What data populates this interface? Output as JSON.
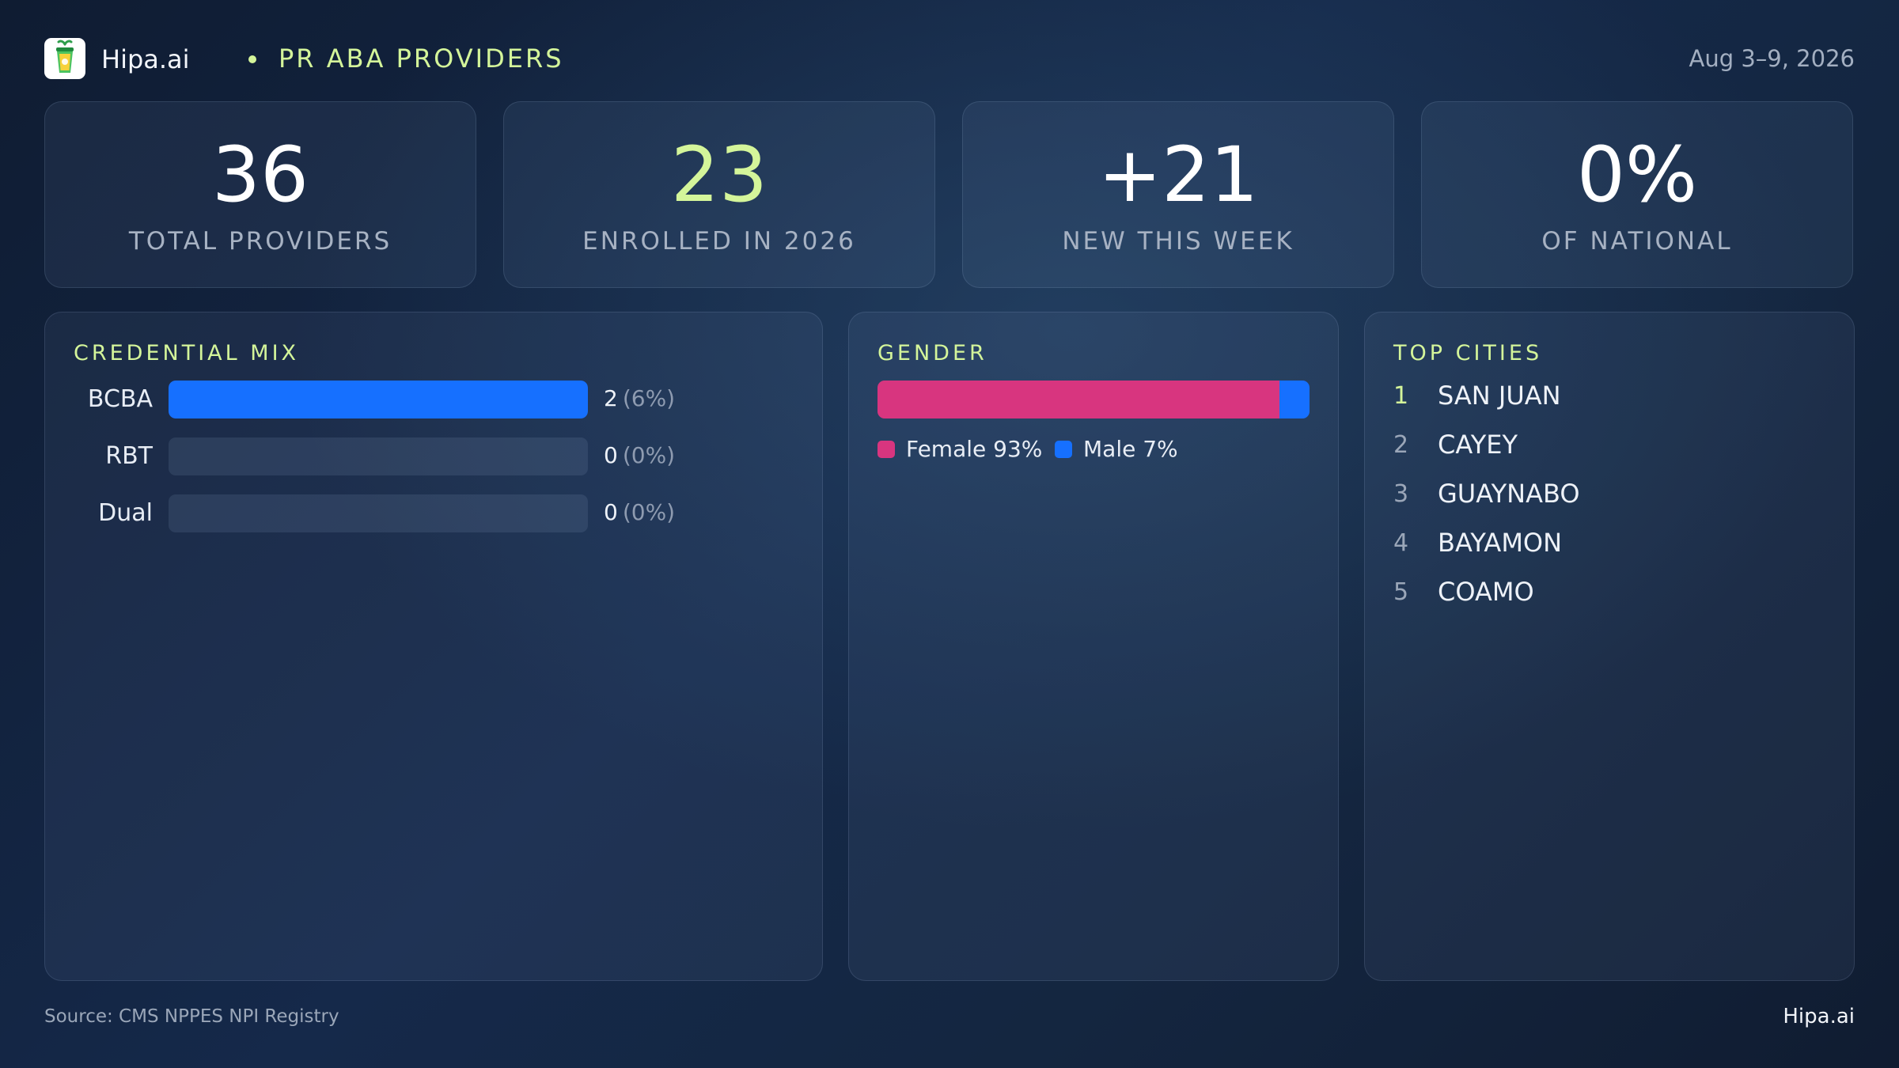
{
  "header": {
    "brand": "Hipa.ai",
    "section_title": "PR ABA PROVIDERS",
    "date_range": "Aug 3–9, 2026",
    "logo_icon": "green-cup-icon"
  },
  "colors": {
    "accent_green": "#d4f59a",
    "bar_blue": "#1670ff",
    "female_pink": "#d8357f",
    "male_blue": "#1670ff",
    "rank_top": "#d4f59a",
    "rank_other": "#9aa6b8"
  },
  "kpis": [
    {
      "value": "36",
      "label": "TOTAL PROVIDERS",
      "highlight": false
    },
    {
      "value": "23",
      "label": "ENROLLED IN 2026",
      "highlight": true
    },
    {
      "value": "+21",
      "label": "NEW THIS WEEK",
      "highlight": false
    },
    {
      "value": "0%",
      "label": "OF NATIONAL",
      "highlight": false
    }
  ],
  "credential_mix": {
    "title": "CREDENTIAL MIX",
    "rows": [
      {
        "label": "BCBA",
        "count": "2",
        "pct": "(6%)",
        "fill_fraction": 1.0
      },
      {
        "label": "RBT",
        "count": "0",
        "pct": "(0%)",
        "fill_fraction": 0.0
      },
      {
        "label": "Dual",
        "count": "0",
        "pct": "(0%)",
        "fill_fraction": 0.0
      }
    ]
  },
  "gender": {
    "title": "GENDER",
    "segments": [
      {
        "name": "Female",
        "percent": 93,
        "legend": "Female 93%",
        "color": "#d8357f"
      },
      {
        "name": "Male",
        "percent": 7,
        "legend": "Male 7%",
        "color": "#1670ff"
      }
    ]
  },
  "top_cities": {
    "title": "TOP CITIES",
    "items": [
      {
        "rank": "1",
        "name": "SAN JUAN"
      },
      {
        "rank": "2",
        "name": "CAYEY"
      },
      {
        "rank": "3",
        "name": "GUAYNABO"
      },
      {
        "rank": "4",
        "name": "BAYAMON"
      },
      {
        "rank": "5",
        "name": "COAMO"
      }
    ]
  },
  "footer": {
    "source": "Source: CMS NPPES NPI Registry",
    "brand": "Hipa.ai"
  }
}
